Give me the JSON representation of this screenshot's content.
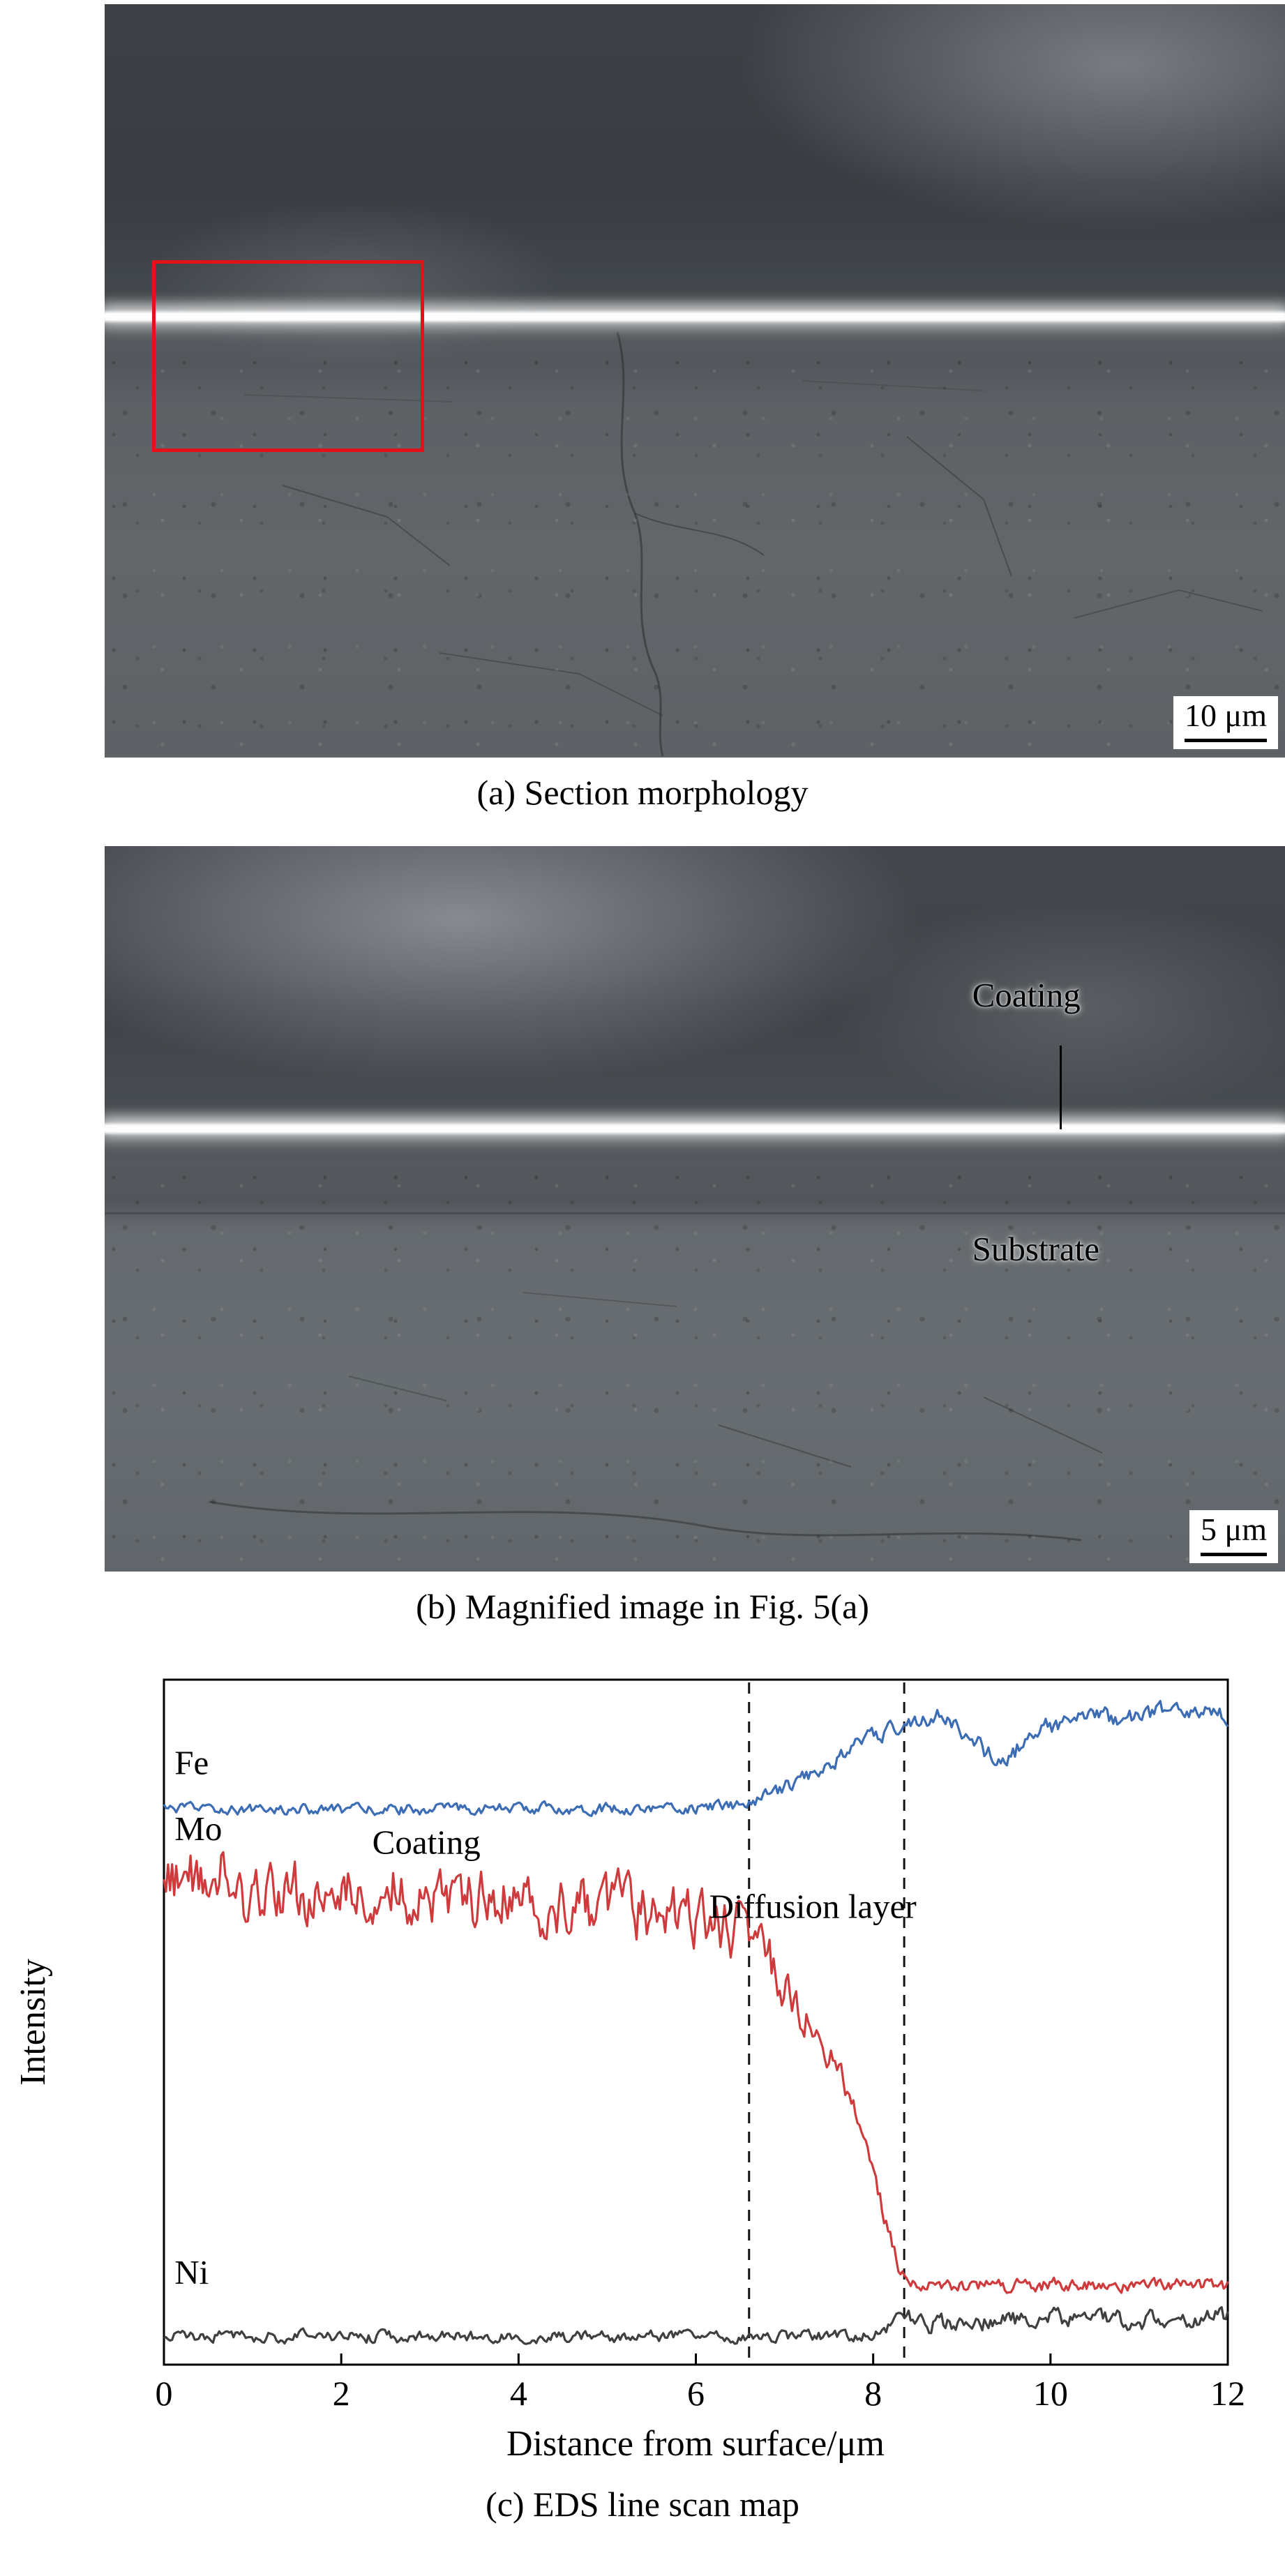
{
  "figure": {
    "panel_a": {
      "caption": "(a) Section morphology",
      "scale_bar": "10 μm"
    },
    "panel_b": {
      "caption": "(b) Magnified image in Fig. 5(a)",
      "scale_bar": "5 μm",
      "labels": {
        "coating": "Coating",
        "substrate": "Substrate"
      }
    },
    "panel_c": {
      "caption": "(c) EDS line scan map"
    }
  },
  "chart_data": {
    "type": "line",
    "title": "",
    "xlabel": "Distance from surface/μm",
    "ylabel": "Intensity",
    "xlim": [
      0,
      12
    ],
    "xticks": [
      0,
      2,
      4,
      6,
      8,
      10,
      12
    ],
    "ylim": [
      0,
      1
    ],
    "y_units": "arbitrary intensity (no tick labels shown)",
    "grid": false,
    "frame": "box",
    "legend_position": "none",
    "dashed_lines_x": [
      6.6,
      8.35
    ],
    "annotations": [
      {
        "text": "Fe",
        "x": 0.12,
        "y": 0.862
      },
      {
        "text": "Mo",
        "x": 0.12,
        "y": 0.766
      },
      {
        "text": "Coating",
        "x": 2.35,
        "y": 0.746
      },
      {
        "text": "Diffusion layer",
        "x": 6.15,
        "y": 0.652
      },
      {
        "text": "Ni",
        "x": 0.12,
        "y": 0.118
      }
    ],
    "series": [
      {
        "name": "Fe",
        "color": "#3b6cb4",
        "keypoints": [
          [
            0,
            0.812
          ],
          [
            2,
            0.81
          ],
          [
            4,
            0.812
          ],
          [
            6,
            0.812
          ],
          [
            6.6,
            0.818
          ],
          [
            6.9,
            0.835
          ],
          [
            7.2,
            0.856
          ],
          [
            7.6,
            0.886
          ],
          [
            8.0,
            0.916
          ],
          [
            8.3,
            0.932
          ],
          [
            8.55,
            0.948
          ],
          [
            8.9,
            0.938
          ],
          [
            9.15,
            0.908
          ],
          [
            9.4,
            0.878
          ],
          [
            9.6,
            0.896
          ],
          [
            9.9,
            0.928
          ],
          [
            10.3,
            0.942
          ],
          [
            10.8,
            0.946
          ],
          [
            11.3,
            0.952
          ],
          [
            12,
            0.948
          ]
        ],
        "noise": [
          [
            0,
            0.005
          ],
          [
            6.5,
            0.006
          ],
          [
            8.3,
            0.01
          ],
          [
            12,
            0.009
          ]
        ]
      },
      {
        "name": "Mo",
        "color": "#cf3a3c",
        "keypoints": [
          [
            0,
            0.705
          ],
          [
            0.6,
            0.72
          ],
          [
            1.0,
            0.675
          ],
          [
            1.5,
            0.69
          ],
          [
            2.0,
            0.685
          ],
          [
            2.6,
            0.7
          ],
          [
            3.2,
            0.675
          ],
          [
            3.8,
            0.685
          ],
          [
            4.4,
            0.665
          ],
          [
            5.0,
            0.672
          ],
          [
            5.6,
            0.655
          ],
          [
            6.1,
            0.648
          ],
          [
            6.6,
            0.625
          ],
          [
            6.9,
            0.575
          ],
          [
            7.15,
            0.52
          ],
          [
            7.35,
            0.49
          ],
          [
            7.6,
            0.43
          ],
          [
            7.9,
            0.335
          ],
          [
            8.1,
            0.23
          ],
          [
            8.3,
            0.135
          ],
          [
            8.5,
            0.118
          ],
          [
            9.5,
            0.115
          ],
          [
            10.5,
            0.118
          ],
          [
            12,
            0.115
          ]
        ],
        "noise": [
          [
            0,
            0.032
          ],
          [
            6.5,
            0.03
          ],
          [
            7.2,
            0.018
          ],
          [
            8.3,
            0.007
          ],
          [
            12,
            0.007
          ]
        ]
      },
      {
        "name": "Ni",
        "color": "#3f3f3f",
        "keypoints": [
          [
            0,
            0.042
          ],
          [
            4,
            0.04
          ],
          [
            7.8,
            0.042
          ],
          [
            8.1,
            0.048
          ],
          [
            8.35,
            0.075
          ],
          [
            8.6,
            0.058
          ],
          [
            9.2,
            0.06
          ],
          [
            10,
            0.068
          ],
          [
            11,
            0.064
          ],
          [
            12,
            0.072
          ]
        ],
        "noise": [
          [
            0,
            0.006
          ],
          [
            8,
            0.006
          ],
          [
            8.4,
            0.009
          ],
          [
            12,
            0.009
          ]
        ]
      }
    ]
  }
}
